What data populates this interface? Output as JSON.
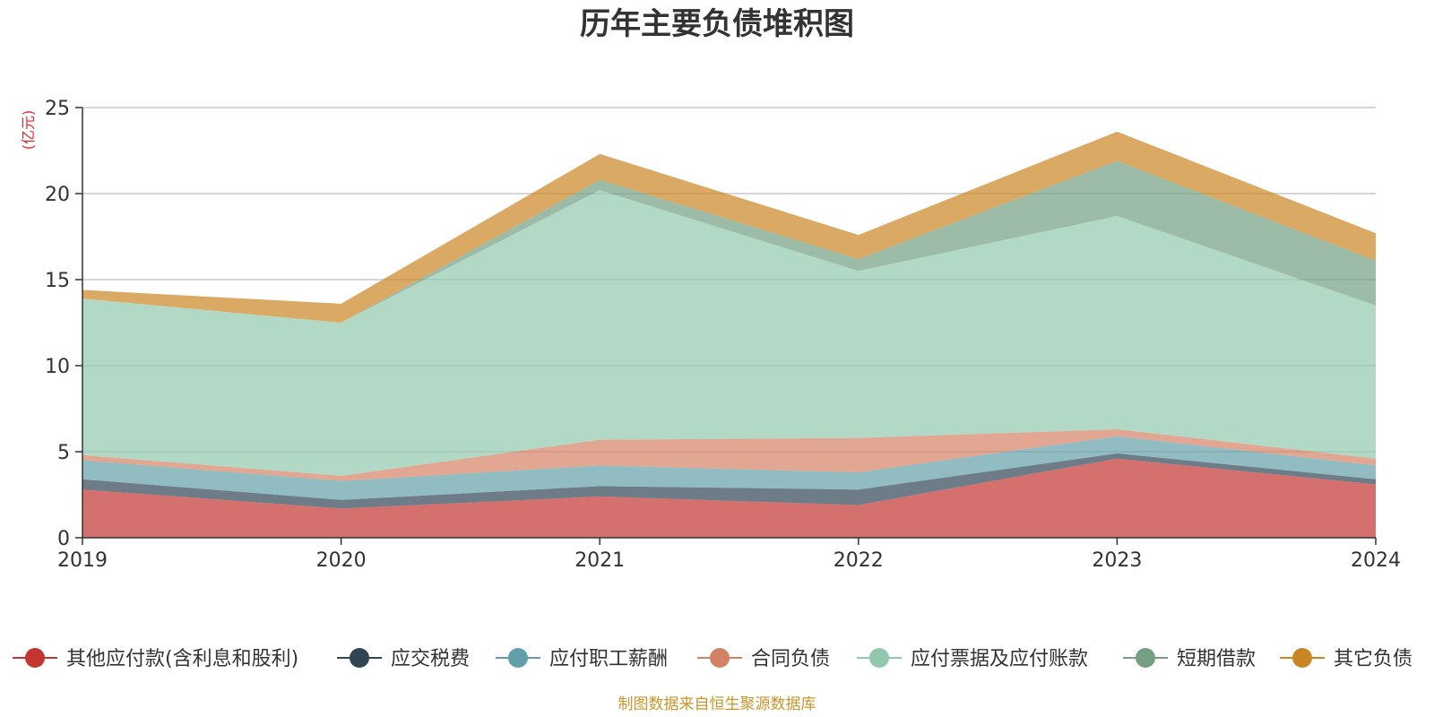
{
  "chart_data": {
    "type": "area",
    "stacked": true,
    "title": "历年主要负债堆积图",
    "unit_label": "(亿元)",
    "source_note": "制图数据来自恒生聚源数据库",
    "categories": [
      "2019",
      "2020",
      "2021",
      "2022",
      "2023",
      "2024"
    ],
    "ylim": [
      0,
      25
    ],
    "yticks": [
      0,
      5,
      10,
      15,
      20,
      25
    ],
    "grid": true,
    "legend_position": "bottom",
    "series": [
      {
        "name": "其他应付款(含利息和股利)",
        "color": "#c23531",
        "values": [
          2.8,
          1.7,
          2.4,
          1.9,
          4.6,
          3.1
        ]
      },
      {
        "name": "应交税费",
        "color": "#2f4554",
        "values": [
          0.6,
          0.5,
          0.6,
          0.9,
          0.3,
          0.3
        ]
      },
      {
        "name": "应付职工薪酬",
        "color": "#61a0a8",
        "values": [
          1.1,
          1.1,
          1.2,
          1.0,
          1.0,
          0.8
        ]
      },
      {
        "name": "合同负债",
        "color": "#d48265",
        "values": [
          0.3,
          0.3,
          1.5,
          2.0,
          0.4,
          0.4
        ]
      },
      {
        "name": "应付票据及应付账款",
        "color": "#91c7ae",
        "values": [
          9.1,
          8.9,
          14.5,
          9.7,
          12.4,
          8.9
        ]
      },
      {
        "name": "短期借款",
        "color": "#749f83",
        "values": [
          0.0,
          0.0,
          0.6,
          0.7,
          3.2,
          2.6
        ]
      },
      {
        "name": "其它负债",
        "color": "#ca8622",
        "values": [
          0.5,
          1.1,
          1.5,
          1.4,
          1.7,
          1.6
        ]
      }
    ]
  }
}
